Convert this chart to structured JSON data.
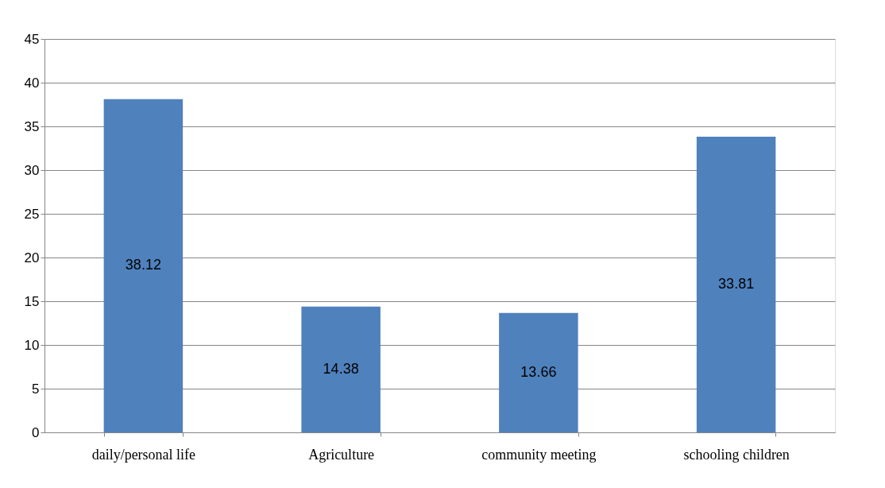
{
  "chart_data": {
    "type": "bar",
    "categories": [
      "daily/personal life",
      "Agriculture",
      "community meeting",
      "schooling children"
    ],
    "values": [
      38.12,
      14.38,
      13.66,
      33.81
    ],
    "color": "#4f81bd",
    "ylim": [
      0,
      45
    ],
    "yticks": [
      0,
      5,
      10,
      15,
      20,
      25,
      30,
      35,
      40,
      45
    ],
    "grid": "y",
    "data_labels": true
  }
}
